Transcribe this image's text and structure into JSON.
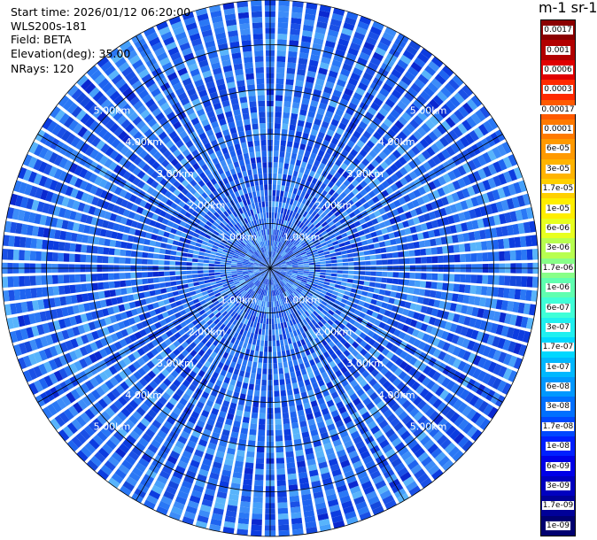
{
  "info": {
    "start_time": "Start time: 2026/01/12 06:20:00",
    "instrument": "WLS200s-181",
    "field": "Field: BETA",
    "elevation": "Elevation(deg): 35.00",
    "nrays": "NRays: 120"
  },
  "colorbar": {
    "title": "m-1 sr-1",
    "labels": [
      "0.0017",
      "0.001",
      "0.0006",
      "0.0003",
      "0.00017",
      "0.0001",
      "6e-05",
      "3e-05",
      "1.7e-05",
      "1e-05",
      "6e-06",
      "3e-06",
      "1.7e-06",
      "1e-06",
      "6e-07",
      "3e-07",
      "1.7e-07",
      "1e-07",
      "6e-08",
      "3e-08",
      "1.7e-08",
      "1e-08",
      "6e-09",
      "3e-09",
      "1.7e-09",
      "1e-09"
    ],
    "colors": [
      "#8b0000",
      "#b20000",
      "#e00000",
      "#ff2a00",
      "#ff5a00",
      "#ff7a00",
      "#ff9a00",
      "#ffb400",
      "#ffd000",
      "#ffee00",
      "#e8ff20",
      "#b8ff50",
      "#88ff88",
      "#60ffb0",
      "#40ffd8",
      "#20f0f0",
      "#00d8ff",
      "#00b8ff",
      "#0098ff",
      "#0070ff",
      "#0048ff",
      "#0020ff",
      "#0000e8",
      "#0000c0",
      "#000098",
      "#000070"
    ]
  },
  "ppi": {
    "range_rings_km": [
      1,
      2,
      3,
      4,
      5
    ],
    "ring_labels": [
      "1.00km",
      "2.00km",
      "3.00km",
      "4.00km",
      "5.00km"
    ],
    "ring_label_angles_deg": [
      45,
      135,
      225,
      315
    ],
    "max_range_km": 6,
    "n_rays": 120,
    "n_gates": 48
  }
}
